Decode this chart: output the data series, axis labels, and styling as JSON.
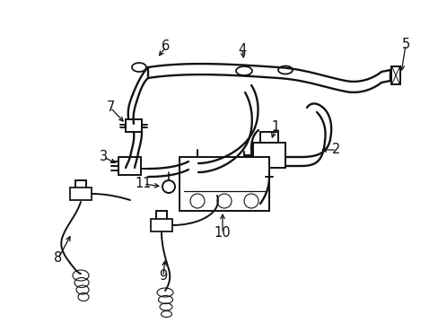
{
  "bg_color": "#ffffff",
  "line_color": "#111111",
  "lw": 1.4,
  "label_fontsize": 10.5,
  "figsize": [
    4.89,
    3.6
  ],
  "dpi": 100
}
